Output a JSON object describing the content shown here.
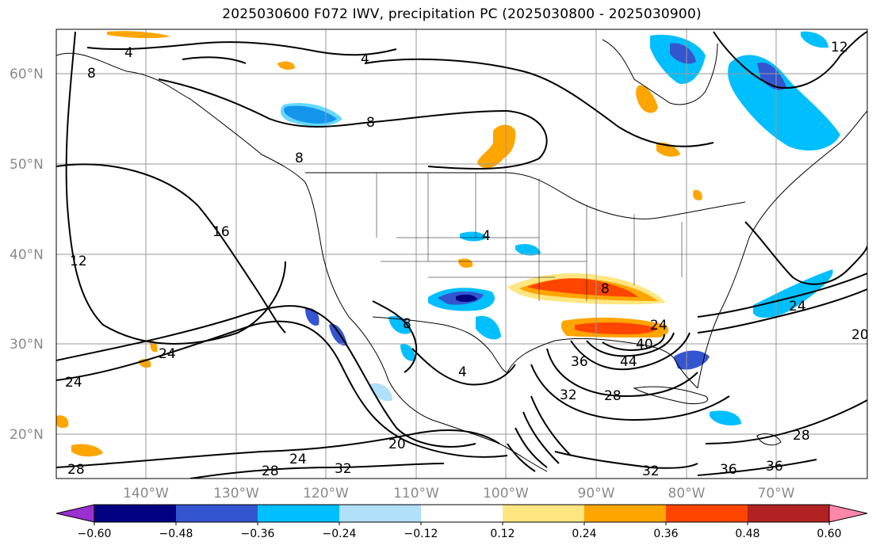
{
  "title": "2025030600 F072 IWV, precipitation PC (2025030800 - 2025030900)",
  "chart_data": {
    "type": "contour-map",
    "title": "2025030600 F072 IWV, precipitation PC (2025030800 - 2025030900)",
    "latitude_ticks": [
      "20°N",
      "30°N",
      "40°N",
      "50°N",
      "60°N"
    ],
    "longitude_ticks": [
      "140°W",
      "130°W",
      "120°W",
      "110°W",
      "100°W",
      "90°W",
      "80°W",
      "70°W"
    ],
    "lat_range": [
      15,
      65
    ],
    "lon_range": [
      -150,
      -60
    ],
    "grid": true,
    "colorbar": {
      "ticks": [
        "−0.60",
        "−0.48",
        "−0.36",
        "−0.24",
        "−0.12",
        "0.12",
        "0.24",
        "0.36",
        "0.48",
        "0.60"
      ],
      "colors": [
        "#9b30d0",
        "#000080",
        "#3455d0",
        "#00bfff",
        "#b0e0fa",
        "#ffffff",
        "#ffe680",
        "#ffa500",
        "#ff4500",
        "#b22222",
        "#ff88aa"
      ],
      "extend": "both"
    },
    "iwv_contour_labels": [
      "4",
      "8",
      "12",
      "16",
      "20",
      "24",
      "28",
      "32",
      "36",
      "40",
      "44"
    ]
  },
  "colors": {
    "contour": "#000000",
    "grid": "#9a9a9a",
    "coast": "#000000"
  }
}
